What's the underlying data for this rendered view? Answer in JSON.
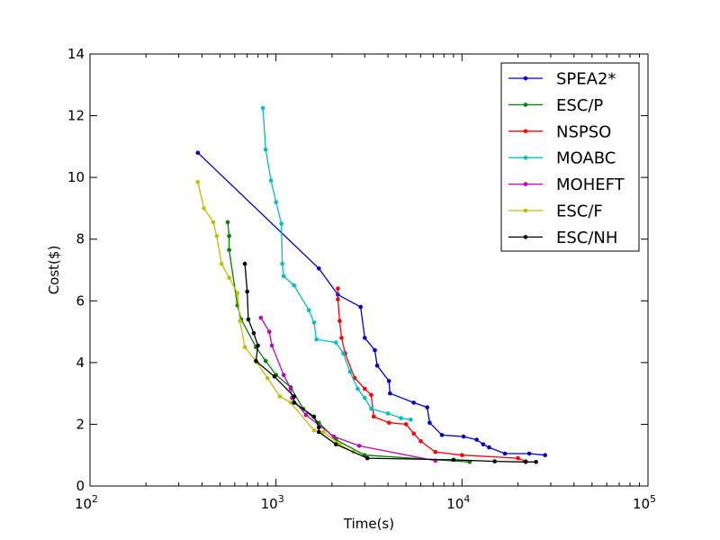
{
  "chart_data": {
    "type": "line",
    "title": "",
    "xlabel": "Time(s)",
    "ylabel": "Cost($)",
    "xscale": "log",
    "xlim": [
      100,
      100000
    ],
    "ylim": [
      0,
      14
    ],
    "x_ticks": [
      {
        "value": 100,
        "base": "10",
        "exp": "2"
      },
      {
        "value": 1000,
        "base": "10",
        "exp": "3"
      },
      {
        "value": 10000,
        "base": "10",
        "exp": "4"
      },
      {
        "value": 100000,
        "base": "10",
        "exp": "5"
      }
    ],
    "y_ticks": [
      0,
      2,
      4,
      6,
      8,
      10,
      12,
      14
    ],
    "y_tick_labels": [
      "0",
      "2",
      "4",
      "6",
      "8",
      "10",
      "12",
      "14"
    ],
    "grid": false,
    "legend_position": "top-right",
    "series": [
      {
        "name": "SPEA2*",
        "color": "#0000cc",
        "points": [
          [
            380,
            10.8
          ],
          [
            1700,
            7.05
          ],
          [
            2150,
            6.2
          ],
          [
            2850,
            5.8
          ],
          [
            3000,
            4.8
          ],
          [
            3400,
            4.4
          ],
          [
            3500,
            3.9
          ],
          [
            4050,
            3.4
          ],
          [
            4100,
            3.0
          ],
          [
            5500,
            2.7
          ],
          [
            6500,
            2.55
          ],
          [
            6700,
            2.05
          ],
          [
            7800,
            1.65
          ],
          [
            10200,
            1.6
          ],
          [
            12000,
            1.5
          ],
          [
            13000,
            1.35
          ],
          [
            14000,
            1.25
          ],
          [
            17000,
            1.05
          ],
          [
            23000,
            1.05
          ],
          [
            28000,
            1.0
          ]
        ]
      },
      {
        "name": "ESC/P",
        "color": "#007f00",
        "points": [
          [
            550,
            8.55
          ],
          [
            560,
            8.1
          ],
          [
            560,
            7.65
          ],
          [
            620,
            5.85
          ],
          [
            650,
            5.4
          ],
          [
            780,
            4.5
          ],
          [
            880,
            4.05
          ],
          [
            1000,
            3.6
          ],
          [
            1200,
            3.2
          ],
          [
            1400,
            2.5
          ],
          [
            1700,
            2.05
          ],
          [
            2100,
            1.5
          ],
          [
            3000,
            1.0
          ],
          [
            11000,
            0.78
          ]
        ]
      },
      {
        "name": "NSPSO",
        "color": "#ff0000",
        "points": [
          [
            2150,
            6.4
          ],
          [
            2150,
            6.05
          ],
          [
            2200,
            5.35
          ],
          [
            2250,
            4.8
          ],
          [
            2350,
            4.3
          ],
          [
            2650,
            3.5
          ],
          [
            3000,
            3.15
          ],
          [
            3250,
            2.95
          ],
          [
            3350,
            2.25
          ],
          [
            4050,
            2.05
          ],
          [
            5000,
            2.0
          ],
          [
            5500,
            1.7
          ],
          [
            6000,
            1.45
          ],
          [
            7200,
            1.1
          ],
          [
            10000,
            1.0
          ],
          [
            20000,
            0.9
          ],
          [
            22000,
            0.8
          ]
        ]
      },
      {
        "name": "MOABC",
        "color": "#00bfbf",
        "points": [
          [
            850,
            12.25
          ],
          [
            880,
            10.9
          ],
          [
            940,
            9.9
          ],
          [
            1000,
            9.2
          ],
          [
            1070,
            8.5
          ],
          [
            1080,
            7.2
          ],
          [
            1100,
            6.8
          ],
          [
            1250,
            6.5
          ],
          [
            1500,
            5.7
          ],
          [
            1600,
            5.3
          ],
          [
            1650,
            4.75
          ],
          [
            2100,
            4.65
          ],
          [
            2300,
            4.3
          ],
          [
            2500,
            3.7
          ],
          [
            2750,
            3.15
          ],
          [
            3000,
            2.85
          ],
          [
            3250,
            2.5
          ],
          [
            4000,
            2.35
          ],
          [
            4700,
            2.2
          ],
          [
            5300,
            2.15
          ]
        ]
      },
      {
        "name": "MOHEFT",
        "color": "#bf00bf",
        "points": [
          [
            830,
            5.45
          ],
          [
            920,
            5.0
          ],
          [
            950,
            4.55
          ],
          [
            1100,
            3.6
          ],
          [
            1200,
            3.15
          ],
          [
            1220,
            2.85
          ],
          [
            1450,
            2.3
          ],
          [
            2050,
            1.6
          ],
          [
            2800,
            1.3
          ],
          [
            7200,
            0.82
          ]
        ]
      },
      {
        "name": "ESC/F",
        "color": "#bfbf00",
        "points": [
          [
            380,
            9.85
          ],
          [
            410,
            9.0
          ],
          [
            460,
            8.55
          ],
          [
            480,
            8.1
          ],
          [
            510,
            7.2
          ],
          [
            560,
            6.75
          ],
          [
            620,
            6.25
          ],
          [
            640,
            5.35
          ],
          [
            680,
            4.5
          ],
          [
            790,
            4.0
          ],
          [
            900,
            3.5
          ],
          [
            1050,
            2.9
          ],
          [
            1200,
            2.7
          ],
          [
            1600,
            1.8
          ],
          [
            1800,
            1.75
          ],
          [
            2200,
            1.35
          ],
          [
            2600,
            1.1
          ],
          [
            3100,
            0.9
          ]
        ]
      },
      {
        "name": "ESC/NH",
        "color": "#000000",
        "points": [
          [
            680,
            7.2
          ],
          [
            700,
            6.3
          ],
          [
            710,
            5.4
          ],
          [
            760,
            4.95
          ],
          [
            800,
            4.55
          ],
          [
            780,
            4.05
          ],
          [
            980,
            3.55
          ],
          [
            1250,
            2.9
          ],
          [
            1250,
            2.7
          ],
          [
            1600,
            2.25
          ],
          [
            1700,
            1.9
          ],
          [
            1700,
            1.75
          ],
          [
            2100,
            1.35
          ],
          [
            3100,
            0.9
          ],
          [
            9000,
            0.85
          ],
          [
            15000,
            0.8
          ],
          [
            22000,
            0.78
          ],
          [
            25000,
            0.78
          ]
        ]
      }
    ]
  }
}
